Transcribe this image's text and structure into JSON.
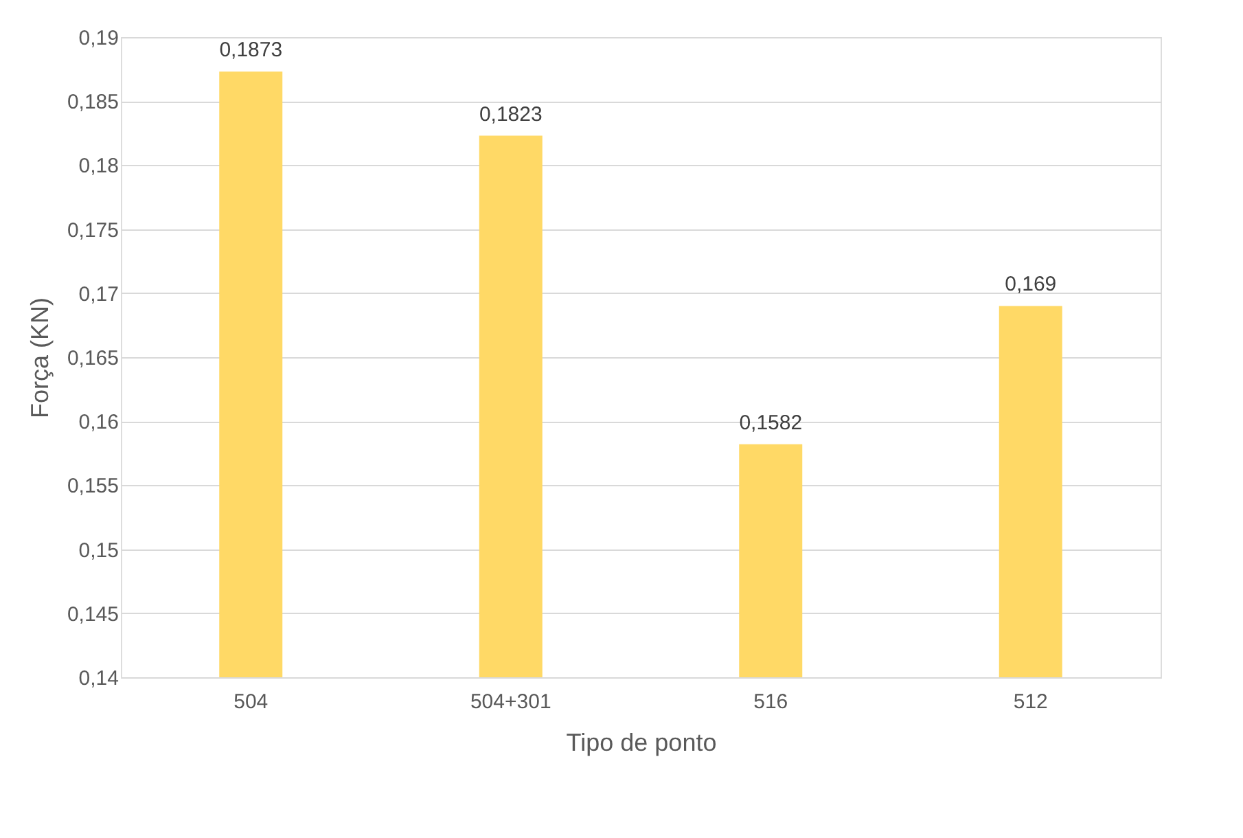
{
  "chart_data": {
    "type": "bar",
    "xlabel": "Tipo de ponto",
    "ylabel": "Força (KN)",
    "categories": [
      "504",
      "504+301",
      "516",
      "512"
    ],
    "values": [
      0.1873,
      0.1823,
      0.1582,
      0.169
    ],
    "value_labels": [
      "0,1873",
      "0,1823",
      "0,1582",
      "0,169"
    ],
    "color": "#ffd966",
    "ylim": [
      0.14,
      0.19
    ],
    "yticks": [
      {
        "value": 0.14,
        "label": "0,14"
      },
      {
        "value": 0.145,
        "label": "0,145"
      },
      {
        "value": 0.15,
        "label": "0,15"
      },
      {
        "value": 0.155,
        "label": "0,155"
      },
      {
        "value": 0.16,
        "label": "0,16"
      },
      {
        "value": 0.165,
        "label": "0,165"
      },
      {
        "value": 0.17,
        "label": "0,17"
      },
      {
        "value": 0.175,
        "label": "0,175"
      },
      {
        "value": 0.18,
        "label": "0,18"
      },
      {
        "value": 0.185,
        "label": "0,185"
      },
      {
        "value": 0.19,
        "label": "0,19"
      }
    ],
    "grid": "y"
  }
}
